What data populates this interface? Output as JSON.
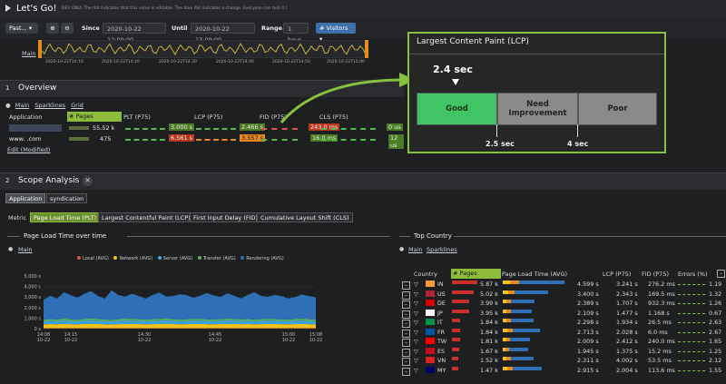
{
  "app": {
    "title": "Let's Go!",
    "subtitle": "DEV ONLY. The dot indicates that this value is editable. The blue dot indicates a change. Everyone can test it.)"
  },
  "toolbar": {
    "past_label": "Past...",
    "since_label": "Since",
    "since_value": "2020-10-22 12:09:00",
    "until_label": "Until",
    "until_value": "2020-10-22 13:09:00",
    "range_label": "Range",
    "range_value": "1 hour",
    "visitors_label": "# Visitors"
  },
  "timeline": {
    "main_link": "Main",
    "ticks": [
      "2020-10-22T14:10",
      "2020-10-22T14:20",
      "2020-10-22T14:30",
      "2020-10-22T14:40",
      "2020-10-22T14:50",
      "2020-10-22T15:00"
    ]
  },
  "overview": {
    "num": "1",
    "title": "Overview",
    "links": [
      "Main",
      "Sparklines",
      "Grid"
    ],
    "headers": [
      "Application",
      "# Pages",
      "PLT (P75)",
      "LCP (P75)",
      "FID (P75)",
      "CLS (P75)"
    ],
    "rows": [
      {
        "app": "",
        "pages": "55.52 k",
        "plt": "3.000 s",
        "lcp": "2.466 s",
        "fid": "243.0 ms",
        "cls": "0 us"
      },
      {
        "app": "www.        .com",
        "pages": "475",
        "plt": "6.561 s",
        "lcp": "3.557 s",
        "fid": "16.0 ms",
        "cls": "12 us"
      }
    ],
    "edit_link": "Edit (Modified)"
  },
  "lcp_popup": {
    "title": "Largest Content Paint (LCP)",
    "marker": "2.4 sec",
    "good": "Good",
    "needs": "Need Improvement",
    "poor": "Poor",
    "t1": "2.5 sec",
    "t2": "4 sec",
    "colors": {
      "good": "#41c464",
      "needs": "#8a8a8a",
      "poor": "#8a8a8a",
      "border": "#86c23d"
    }
  },
  "scope": {
    "num": "2",
    "title": "Scope Analysis",
    "tabs": [
      "Application",
      "syndication"
    ],
    "metric_label": "Metric",
    "metrics": [
      "Page Load Time (PLT)",
      "Largest Contentful Paint (LCP)",
      "First Input Delay (FID)",
      "Cumulative Layout Shift (CLS)"
    ]
  },
  "plt_chart": {
    "title": "Page Load Time over time",
    "main_link": "Main",
    "legend": [
      {
        "name": "Local (AVG)",
        "color": "#d9534f"
      },
      {
        "name": "Network (AVG)",
        "color": "#f0c419"
      },
      {
        "name": "Server (AVG)",
        "color": "#3ea3dd"
      },
      {
        "name": "Transfer (AVG)",
        "color": "#59b55d"
      },
      {
        "name": "Rendering (AVG)",
        "color": "#2f6fb5"
      }
    ]
  },
  "chart_data": {
    "type": "area",
    "title": "Page Load Time over time",
    "ylabel": "",
    "yticks": [
      "5,000 s",
      "4,000 s",
      "3,000 s",
      "2,000 s",
      "1,000 s",
      "0 s"
    ],
    "ylim": [
      0,
      5000
    ],
    "xticks": [
      "14:08\n10-22",
      "14:15\n10-22",
      "14:30\n10-22",
      "14:45\n10-22",
      "15:00\n10-22",
      "15:08\n10-22"
    ],
    "x": [
      0,
      1,
      2,
      3,
      4,
      5,
      6,
      7,
      8,
      9,
      10,
      11,
      12,
      13,
      14,
      15,
      16,
      17,
      18,
      19,
      20,
      21,
      22,
      23,
      24,
      25,
      26,
      27,
      28,
      29,
      30,
      31,
      32,
      33,
      34,
      35,
      36,
      37,
      38,
      39,
      40
    ],
    "series": [
      {
        "name": "Local (AVG)",
        "values": [
          50,
          50,
          50,
          50,
          50,
          50,
          50,
          50,
          50,
          50,
          50,
          50,
          50,
          50,
          50,
          50,
          50,
          50,
          50,
          50,
          50,
          50,
          50,
          50,
          50,
          50,
          50,
          50,
          50,
          50,
          50,
          50,
          50,
          50,
          50,
          50,
          50,
          50,
          50,
          50,
          50
        ]
      },
      {
        "name": "Network (AVG)",
        "values": [
          350,
          380,
          360,
          400,
          370,
          350,
          390,
          410,
          380,
          360,
          350,
          370,
          400,
          390,
          380,
          360,
          370,
          390,
          410,
          380,
          360,
          370,
          380,
          390,
          370,
          360,
          380,
          400,
          390,
          370,
          380,
          360,
          370,
          390,
          380,
          370,
          360,
          380,
          390,
          370,
          360
        ]
      },
      {
        "name": "Server (AVG)",
        "values": [
          300,
          320,
          310,
          330,
          300,
          290,
          320,
          330,
          310,
          300,
          290,
          310,
          330,
          320,
          310,
          300,
          310,
          320,
          330,
          310,
          300,
          310,
          320,
          330,
          310,
          300,
          320,
          330,
          320,
          310,
          320,
          300,
          310,
          320,
          310,
          300,
          310,
          320,
          330,
          310,
          300
        ]
      },
      {
        "name": "Transfer (AVG)",
        "values": [
          150,
          160,
          150,
          170,
          160,
          150,
          160,
          170,
          160,
          150,
          150,
          160,
          170,
          160,
          150,
          150,
          160,
          170,
          160,
          150,
          150,
          160,
          170,
          160,
          150,
          150,
          160,
          170,
          160,
          150,
          160,
          150,
          160,
          170,
          160,
          150,
          150,
          160,
          170,
          160,
          150
        ]
      },
      {
        "name": "Rendering (AVG)",
        "values": [
          1900,
          2200,
          2000,
          2500,
          2300,
          2100,
          2400,
          2600,
          2200,
          2000,
          2800,
          2300,
          2100,
          2400,
          2200,
          2000,
          2300,
          2500,
          2100,
          2200,
          2400,
          2300,
          2000,
          2200,
          2500,
          2300,
          2100,
          2400,
          2200,
          2000,
          2300,
          2600,
          2200,
          2100,
          2300,
          2200,
          2000,
          2100,
          2300,
          2200,
          2100
        ]
      }
    ]
  },
  "country": {
    "title": "Top Country",
    "links": [
      "Main",
      "Sparklines"
    ],
    "headers": [
      "Country",
      "# Pages",
      "Page Load Time (AVG)",
      "LCP (P75)",
      "FID (P75)",
      "Errors (%)"
    ],
    "rows": [
      {
        "code": "IN",
        "pages": "5.87 k",
        "plt": "4.599 s",
        "lcp": "3.241 s",
        "fid": "276.2 ms",
        "err": "1.19"
      },
      {
        "code": "US",
        "pages": "5.02 k",
        "plt": "3.400 s",
        "lcp": "2.343 s",
        "fid": "169.5 ms",
        "err": "1.32"
      },
      {
        "code": "DE",
        "pages": "3.99 k",
        "plt": "2.389 s",
        "lcp": "1.707 s",
        "fid": "932.3 ms",
        "err": "1.26"
      },
      {
        "code": "JP",
        "pages": "3.95 k",
        "plt": "2.109 s",
        "lcp": "1.477 s",
        "fid": "1.168 s",
        "err": "0.67"
      },
      {
        "code": "IT",
        "pages": "1.84 k",
        "plt": "2.298 s",
        "lcp": "1.934 s",
        "fid": "26.5 ms",
        "err": "2.63"
      },
      {
        "code": "FR",
        "pages": "1.84 k",
        "plt": "2.713 s",
        "lcp": "2.028 s",
        "fid": "6.0 ms",
        "err": "2.67"
      },
      {
        "code": "TW",
        "pages": "1.81 k",
        "plt": "2.009 s",
        "lcp": "2.412 s",
        "fid": "240.0 ms",
        "err": "1.65"
      },
      {
        "code": "ES",
        "pages": "1.67 k",
        "plt": "1.945 s",
        "lcp": "1.375 s",
        "fid": "15.2 ms",
        "err": "1.25"
      },
      {
        "code": "VN",
        "pages": "1.52 k",
        "plt": "2.311 s",
        "lcp": "4.002 s",
        "fid": "53.5 ms",
        "err": "2.12"
      },
      {
        "code": "MY",
        "pages": "1.47 k",
        "plt": "2.915 s",
        "lcp": "2.004 s",
        "fid": "113.6 ms",
        "err": "1.55"
      }
    ],
    "flags": {
      "IN": "#ff9933",
      "US": "#b22234",
      "DE": "#dd0000",
      "JP": "#ffffff",
      "IT": "#009246",
      "FR": "#0055a4",
      "TW": "#fe0000",
      "ES": "#c60b1e",
      "VN": "#da251d",
      "MY": "#010066"
    },
    "page_frac": [
      1.0,
      0.86,
      0.68,
      0.67,
      0.31,
      0.31,
      0.31,
      0.28,
      0.26,
      0.25
    ],
    "plt_frac": [
      1.0,
      0.74,
      0.52,
      0.46,
      0.5,
      0.59,
      0.44,
      0.42,
      0.5,
      0.63
    ]
  }
}
